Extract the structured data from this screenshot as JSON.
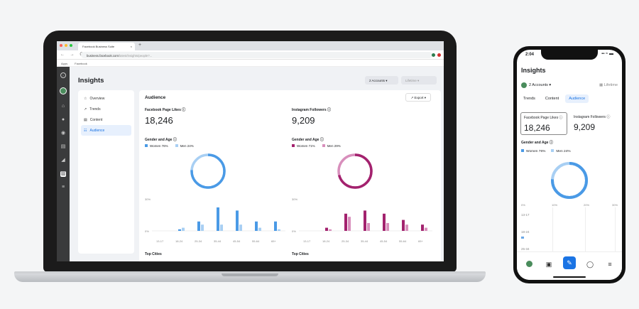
{
  "browser": {
    "tab_title": "Facebook Business Suite",
    "tab_close": "×",
    "new_tab": "+",
    "nav": "← → C",
    "url_host": "business.facebook.com",
    "url_path": "/latest/insights/people?...",
    "bookmarks": [
      "Apps",
      "Facebook"
    ]
  },
  "desktop": {
    "page_title": "Insights",
    "accounts_dropdown": "2 Accounts ▾",
    "range_dropdown": "Lifetime ▾",
    "subnav": [
      {
        "icon": "☆",
        "label": "Overview"
      },
      {
        "icon": "↗",
        "label": "Trends"
      },
      {
        "icon": "▤",
        "label": "Content"
      },
      {
        "icon": "☷",
        "label": "Audience"
      }
    ],
    "section_title": "Audience",
    "export_label": "↗  Export  ▾",
    "facebook": {
      "label": "Facebook Page Likes ⓘ",
      "value": "18,246",
      "gender_label": "Gender and Age ⓘ",
      "women": "Women  76%",
      "men": "Men  24%",
      "color_women": "#4a9ae6",
      "color_men": "#a8cff3"
    },
    "instagram": {
      "label": "Instagram Followers ⓘ",
      "value": "9,209",
      "gender_label": "Gender and Age ⓘ",
      "women": "Women  71%",
      "men": "Men  29%",
      "color_women": "#a3226e",
      "color_men": "#d88fbc"
    },
    "y_top": "30%",
    "y_zero": "0%",
    "age_groups": [
      "13-17",
      "18-24",
      "25-34",
      "35-44",
      "45-54",
      "55-64",
      "65+"
    ],
    "fb_women_values": [
      0,
      1,
      6,
      15,
      13,
      6,
      6
    ],
    "fb_men_values": [
      0,
      2,
      4,
      4,
      4,
      2,
      1
    ],
    "ig_women_values": [
      0,
      2,
      11,
      13,
      11,
      7,
      4
    ],
    "ig_men_values": [
      0,
      1,
      9,
      5,
      5,
      4,
      2
    ],
    "top_cities": "Top Cities"
  },
  "phone": {
    "time": "2:04",
    "status": "▪▪ ≈ ▬",
    "title": "Insights",
    "accounts": "2 Accounts ▾",
    "lifetime": "▦ Lifetime",
    "tabs": [
      "Trends",
      "Content",
      "Audience"
    ],
    "fb_label": "Facebook Page Likes ⓘ",
    "fb_value": "18,246",
    "ig_label": "Instagram Followers ⓘ",
    "ig_value": "9,209",
    "gender_label": "Gender and Age ⓘ",
    "women": "Women  76%",
    "men": "Men  24%",
    "axis_ticks": [
      "0%",
      "10%",
      "20%",
      "30%"
    ],
    "ages": [
      "13-17",
      "18-24",
      "25-34"
    ],
    "age_values": [
      0,
      4,
      5
    ]
  }
}
